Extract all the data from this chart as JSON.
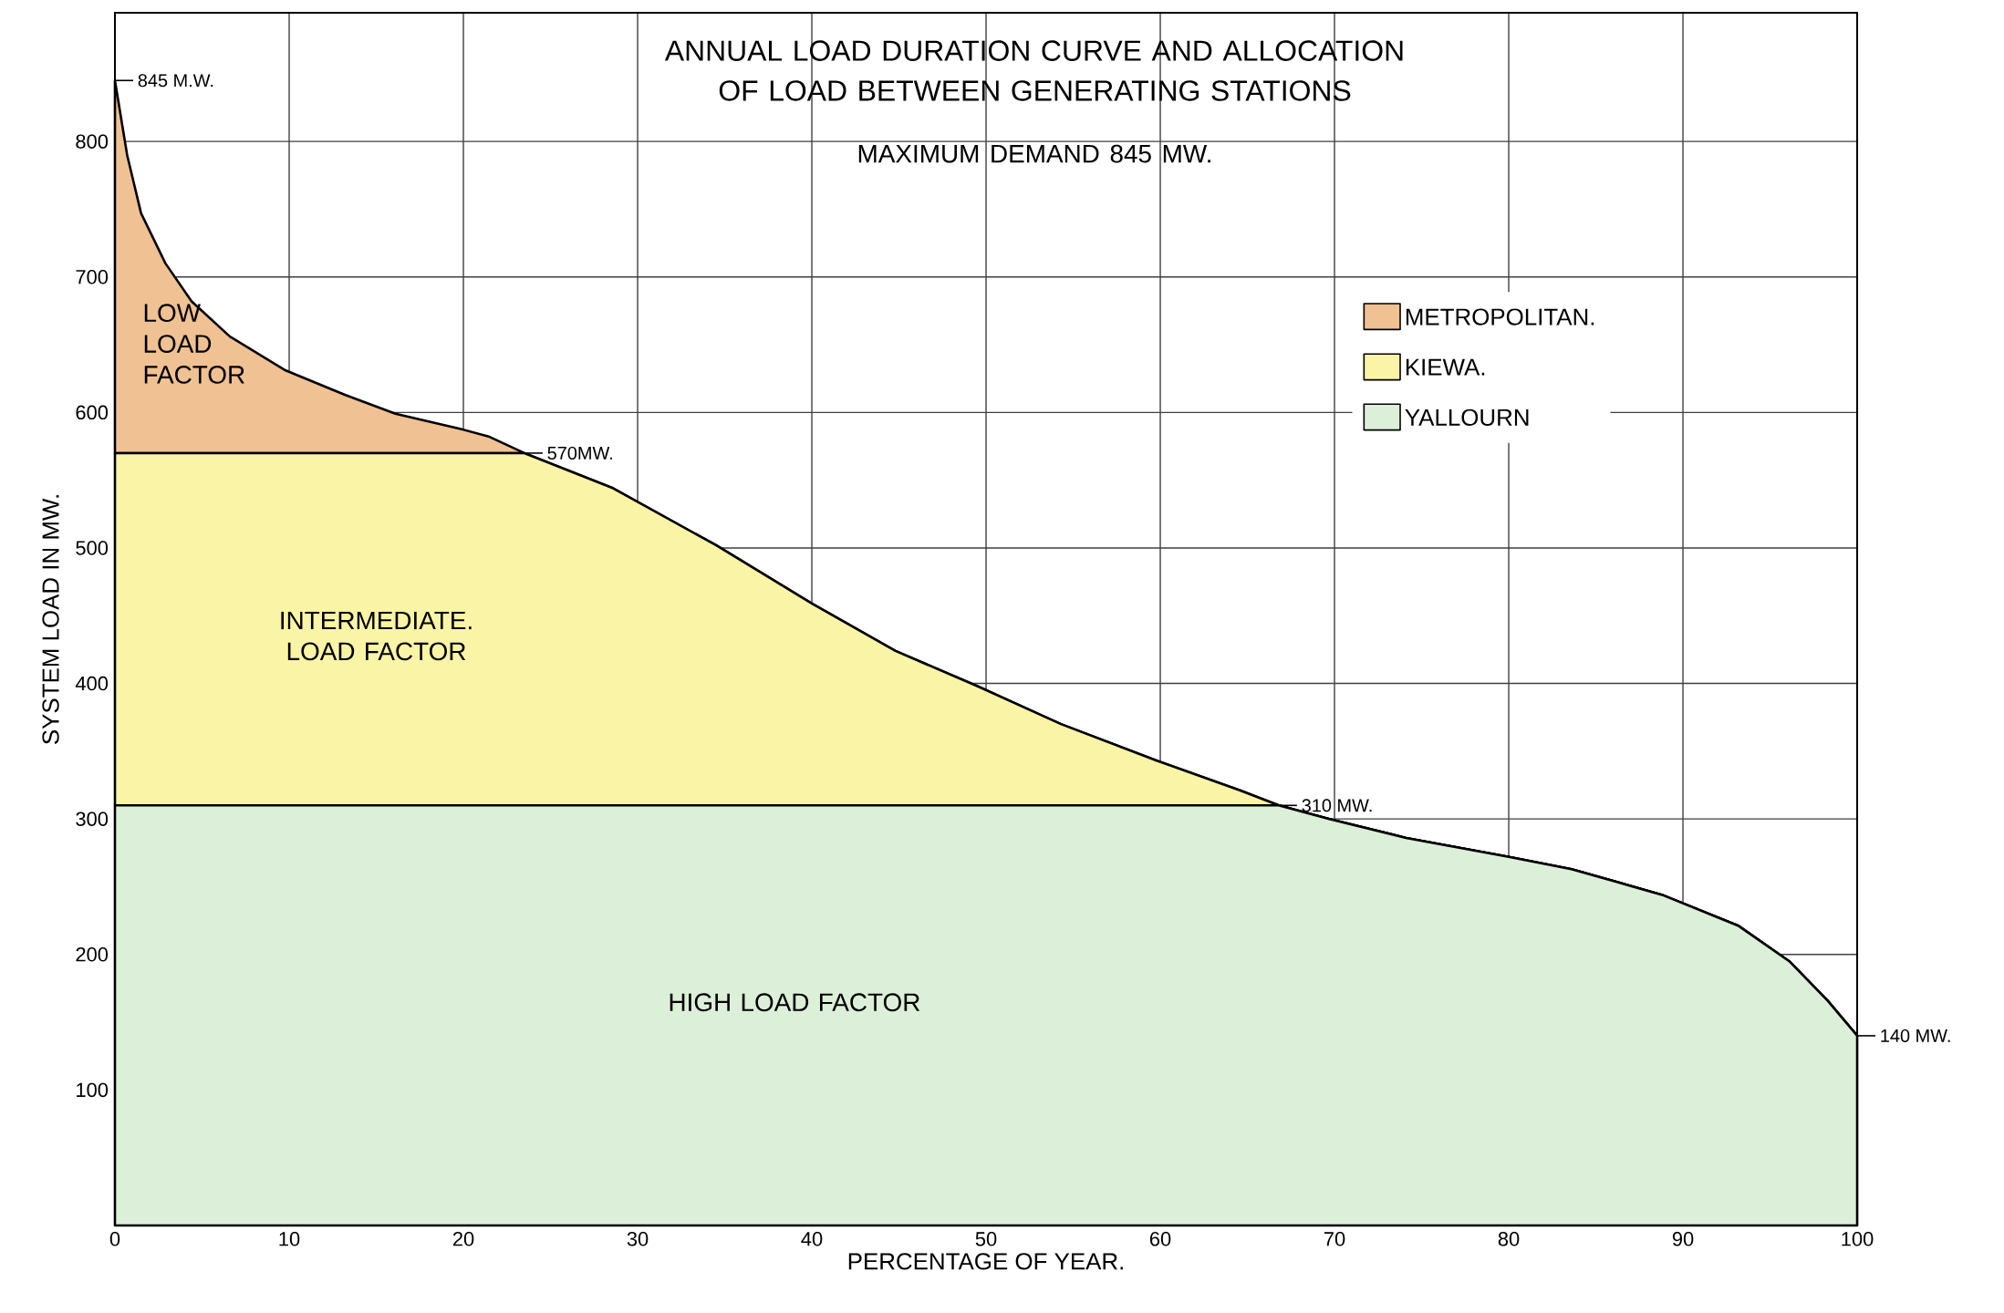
{
  "chart_data": {
    "type": "area",
    "title": "ANNUAL LOAD DURATION CURVE AND ALLOCATION OF LOAD BETWEEN GENERATING STATIONS",
    "subtitle": "MAXIMUM DEMAND 845 MW.",
    "xlabel": "PERCENTAGE OF YEAR.",
    "ylabel": "SYSTEM LOAD IN MW.",
    "x": [
      0,
      0.7,
      1.5,
      2.9,
      4.4,
      6.6,
      9.8,
      13.2,
      16.1,
      19.8,
      21.5,
      23.5,
      28.6,
      34.5,
      40,
      44.8,
      49.5,
      54.3,
      59.8,
      64.6,
      66.8,
      69.7,
      74.1,
      80,
      83.6,
      88.8,
      93.2,
      96.1,
      98.3,
      100
    ],
    "stacked": true,
    "series": [
      {
        "name": "YALLOURN",
        "color": "#dcefd8",
        "values": [
          310,
          310,
          310,
          310,
          310,
          310,
          310,
          310,
          310,
          310,
          310,
          310,
          310,
          310,
          310,
          310,
          310,
          310,
          310,
          310,
          310,
          300,
          286,
          272,
          263,
          244,
          221,
          195,
          166,
          140
        ]
      },
      {
        "name": "KIEWA.",
        "color": "#faf4a6",
        "values": [
          260,
          260,
          260,
          260,
          260,
          260,
          260,
          260,
          260,
          260,
          260,
          260,
          234,
          192,
          149,
          114,
          88,
          60,
          33,
          11,
          0,
          0,
          0,
          0,
          0,
          0,
          0,
          0,
          0,
          0
        ]
      },
      {
        "name": "METROPOLITAN.",
        "color": "#efc193",
        "values": [
          275,
          220,
          177,
          140,
          112,
          86,
          61,
          43,
          29,
          18,
          12,
          0,
          0,
          0,
          0,
          0,
          0,
          0,
          0,
          0,
          0,
          0,
          0,
          0,
          0,
          0,
          0,
          0,
          0,
          0
        ]
      }
    ],
    "xlim": [
      0,
      100
    ],
    "ylim": [
      0,
      895
    ],
    "xticks": [
      0,
      10,
      20,
      30,
      40,
      50,
      60,
      70,
      80,
      90,
      100
    ],
    "yticks": [
      100,
      200,
      300,
      400,
      500,
      600,
      700,
      800
    ],
    "grid": true,
    "legend": "right",
    "annotations": [
      {
        "text": "845 M.W.",
        "x": 0,
        "y": 845
      },
      {
        "text": "570MW.",
        "x": 23.5,
        "y": 570
      },
      {
        "text": "310 MW.",
        "x": 66.8,
        "y": 310
      },
      {
        "text": "140 MW.",
        "x": 100,
        "y": 140
      },
      "LOW LOAD FACTOR",
      "INTERMEDIATE. LOAD FACTOR",
      "HIGH LOAD FACTOR"
    ]
  }
}
